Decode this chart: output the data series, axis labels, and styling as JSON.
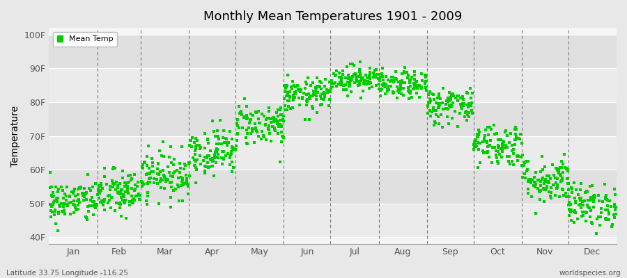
{
  "title": "Monthly Mean Temperatures 1901 - 2009",
  "ylabel": "Temperature",
  "xlabel_months": [
    "Jan",
    "Feb",
    "Mar",
    "Apr",
    "May",
    "Jun",
    "Jul",
    "Aug",
    "Sep",
    "Oct",
    "Nov",
    "Dec"
  ],
  "ytick_labels": [
    "40F",
    "50F",
    "60F",
    "70F",
    "80F",
    "90F",
    "100F"
  ],
  "ytick_values": [
    40,
    50,
    60,
    70,
    80,
    90,
    100
  ],
  "ylim": [
    38,
    102
  ],
  "dot_color": "#00cc00",
  "bg_color": "#e8e8e8",
  "plot_bg_color": "#f5f5f5",
  "band_color_light": "#ebebeb",
  "band_color_dark": "#dcdcdc",
  "dashed_color": "#777777",
  "legend_label": "Mean Temp",
  "footer_left": "Latitude 33.75 Longitude -116.25",
  "footer_right": "worldspecies.org",
  "monthly_means": [
    50.5,
    53.0,
    58.5,
    65.5,
    73.5,
    82.0,
    87.0,
    85.0,
    79.0,
    67.5,
    57.0,
    49.5
  ],
  "monthly_stds": [
    3.2,
    3.5,
    3.5,
    3.5,
    3.2,
    2.5,
    2.0,
    2.0,
    2.8,
    3.2,
    3.5,
    3.2
  ],
  "n_years": 109,
  "seed": 42
}
